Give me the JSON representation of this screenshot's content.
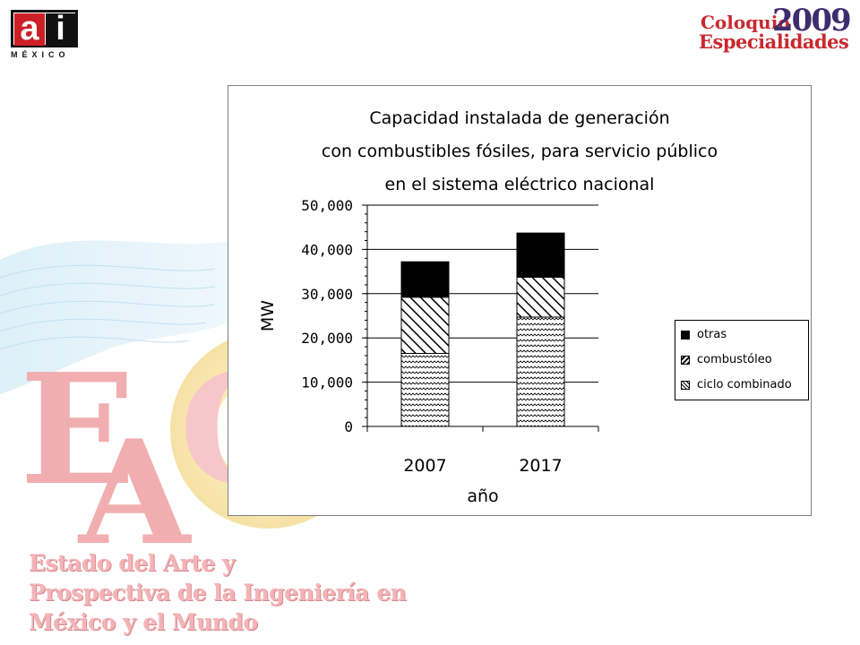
{
  "logo_left": {
    "letters_a": "a",
    "letters_i": "i",
    "subtitle": "MÉXICO"
  },
  "logo_right": {
    "word": "Coloquio",
    "year": "2009",
    "word2": "Especialidades"
  },
  "background": {
    "eac_letters": [
      "E",
      "A",
      "C"
    ],
    "lines": [
      "Estado del Arte y",
      "Prospectiva de la Ingeniería en",
      "México y el Mundo"
    ]
  },
  "chart_data": {
    "type": "bar",
    "stacked": true,
    "title_lines": [
      "Capacidad instalada de generación",
      "con combustibles fósiles, para servicio público",
      "en el sistema eléctrico nacional"
    ],
    "xlabel": "año",
    "ylabel": "MW",
    "categories": [
      "2007",
      "2017"
    ],
    "ylim": [
      0,
      50000
    ],
    "yticks": [
      0,
      10000,
      20000,
      30000,
      40000,
      50000
    ],
    "ytick_labels": [
      "0",
      "10,000",
      "20,000",
      "30,000",
      "40,000",
      "50,000"
    ],
    "grid": true,
    "legend_position": "right",
    "series": [
      {
        "name": "ciclo combinado",
        "values": [
          16500,
          24700
        ],
        "pattern": "zigzag"
      },
      {
        "name": "combustóleo",
        "values": [
          12700,
          9000
        ],
        "pattern": "diagonal"
      },
      {
        "name": "otras",
        "values": [
          8000,
          10000
        ],
        "pattern": "solid",
        "color": "#000000"
      }
    ],
    "legend_order": [
      "otras",
      "combustóleo",
      "ciclo combinado"
    ]
  }
}
